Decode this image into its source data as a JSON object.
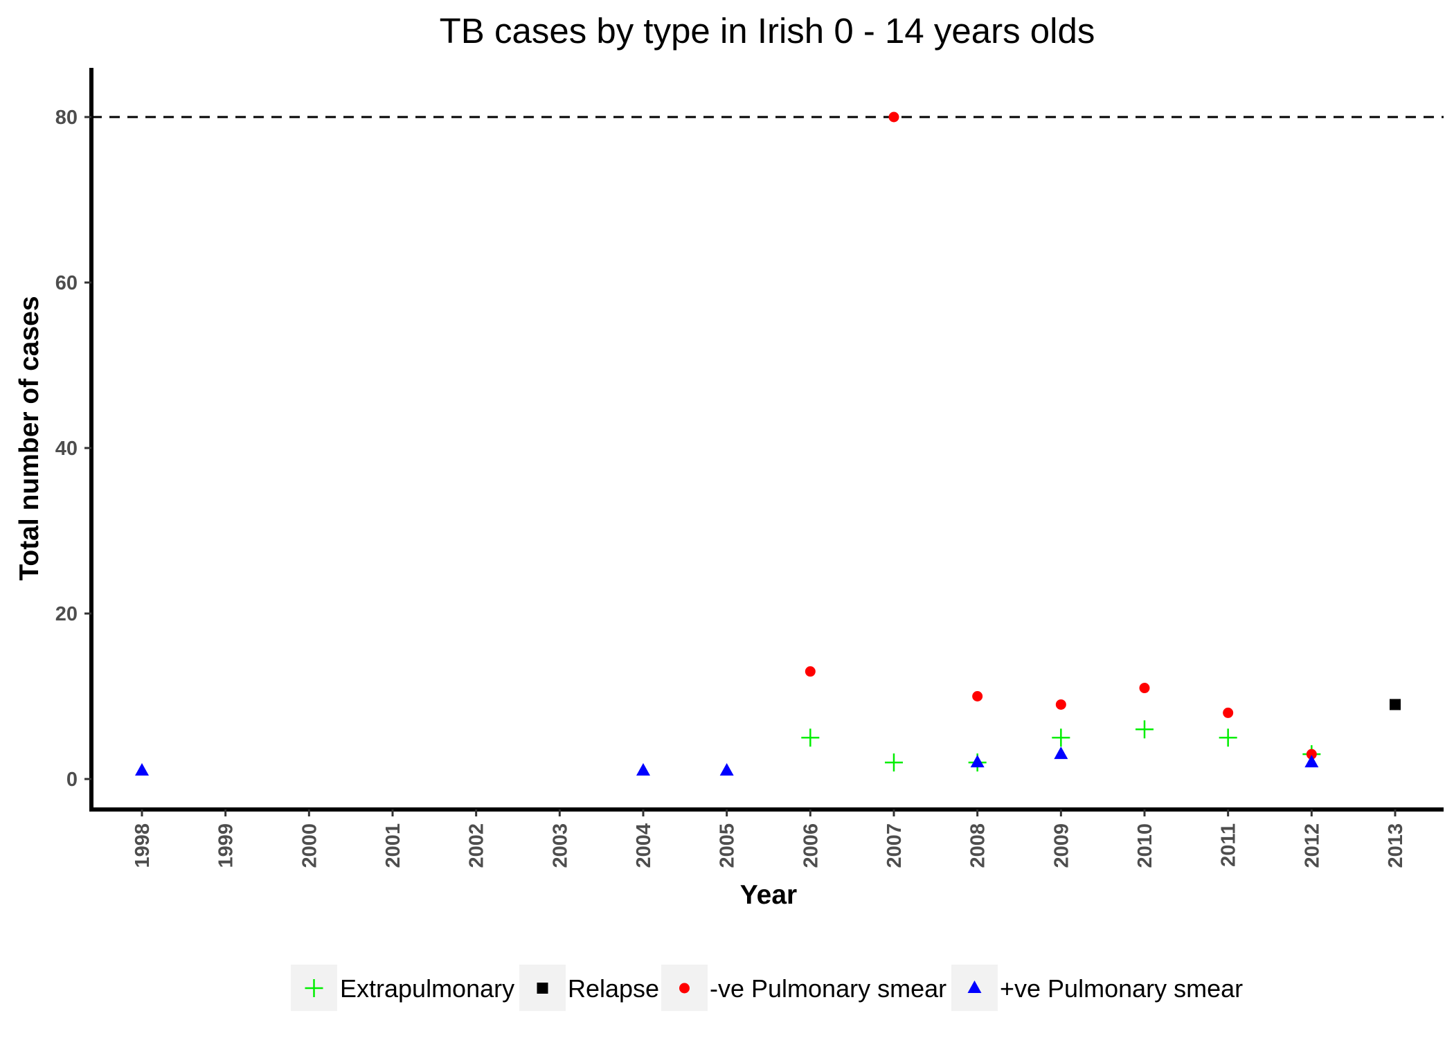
{
  "chart_data": {
    "type": "scatter",
    "title": "TB cases by type in Irish 0 - 14 years olds",
    "xlabel": "Year",
    "ylabel": "Total number of cases",
    "categories": [
      "1998",
      "1999",
      "2000",
      "2001",
      "2002",
      "2003",
      "2004",
      "2005",
      "2006",
      "2007",
      "2008",
      "2009",
      "2010",
      "2011",
      "2012",
      "2013"
    ],
    "ylim": [
      -4,
      86
    ],
    "yticks": [
      0,
      20,
      40,
      60,
      80
    ],
    "reference_line": {
      "y": 80,
      "style": "dashed",
      "color": "#000000"
    },
    "grid": false,
    "legend_position": "bottom",
    "series": [
      {
        "name": "Extrapulmonary",
        "marker": "plus",
        "color": "#00ee00",
        "points": [
          {
            "x": "2006",
            "y": 5
          },
          {
            "x": "2007",
            "y": 2
          },
          {
            "x": "2008",
            "y": 2
          },
          {
            "x": "2009",
            "y": 5
          },
          {
            "x": "2010",
            "y": 6
          },
          {
            "x": "2011",
            "y": 5
          },
          {
            "x": "2012",
            "y": 3
          }
        ]
      },
      {
        "name": "Relapse",
        "marker": "square",
        "color": "#000000",
        "points": [
          {
            "x": "2013",
            "y": 9
          }
        ]
      },
      {
        "name": "-ve Pulmonary smear",
        "marker": "circle",
        "color": "#ff0000",
        "points": [
          {
            "x": "2006",
            "y": 13
          },
          {
            "x": "2007",
            "y": 80
          },
          {
            "x": "2008",
            "y": 10
          },
          {
            "x": "2009",
            "y": 9
          },
          {
            "x": "2010",
            "y": 11
          },
          {
            "x": "2011",
            "y": 8
          },
          {
            "x": "2012",
            "y": 3
          }
        ]
      },
      {
        "name": "+ve Pulmonary smear",
        "marker": "triangle",
        "color": "#0000ff",
        "points": [
          {
            "x": "1998",
            "y": 1
          },
          {
            "x": "2004",
            "y": 1
          },
          {
            "x": "2005",
            "y": 1
          },
          {
            "x": "2008",
            "y": 2
          },
          {
            "x": "2009",
            "y": 3
          },
          {
            "x": "2012",
            "y": 2
          }
        ]
      }
    ]
  }
}
